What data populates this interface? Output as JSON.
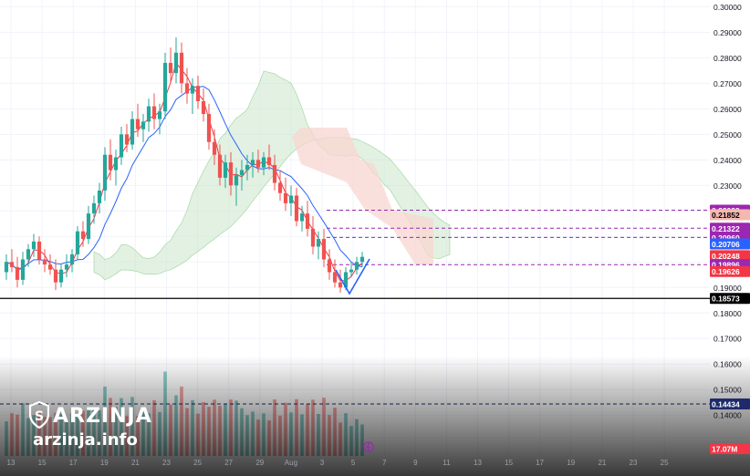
{
  "watermark": {
    "brand": "ARZINJA",
    "url": "arzinja.info"
  },
  "chart_data": {
    "type": "candlestick",
    "title": "",
    "y_axis": {
      "ticks": [
        "0.30000",
        "0.29000",
        "0.28000",
        "0.27000",
        "0.26000",
        "0.25000",
        "0.24000",
        "0.23000",
        "0.22000",
        "0.21000",
        "0.20000",
        "0.19000",
        "0.18000",
        "0.17000",
        "0.16000",
        "0.15000",
        "0.14000"
      ],
      "range": [
        0.1365,
        0.3005
      ]
    },
    "x_axis": {
      "ticks": [
        "13",
        "15",
        "17",
        "19",
        "21",
        "23",
        "25",
        "27",
        "29",
        "Aug",
        "3",
        "5",
        "7",
        "9",
        "11",
        "13",
        "15",
        "17",
        "19",
        "21",
        "23",
        "25"
      ]
    },
    "price_labels": [
      {
        "value": "0.22029",
        "bg": "#9c27b0",
        "fg": "#ffffff"
      },
      {
        "value": "0.21852",
        "bg": "#f4b8b0",
        "fg": "#000000"
      },
      {
        "value": "0.21322",
        "bg": "#9c27b0",
        "fg": "#ffffff"
      },
      {
        "value": "0.20960",
        "bg": "#9c27b0",
        "fg": "#ffffff"
      },
      {
        "value": "0.20706",
        "bg": "#2962ff",
        "fg": "#ffffff"
      },
      {
        "value": "0.20248",
        "bg": "#f23645",
        "fg": "#ffffff"
      },
      {
        "value": "0.19896",
        "bg": "#9c27b0",
        "fg": "#ffffff"
      },
      {
        "value": "0.19626",
        "bg": "#f23645",
        "fg": "#ffffff"
      },
      {
        "value": "0.18573",
        "bg": "#000000",
        "fg": "#ffffff"
      },
      {
        "value": "0.14434",
        "bg": "#1e2a6b",
        "fg": "#ffffff"
      },
      {
        "value": "17.07M",
        "bg": "#f23645",
        "fg": "#ffffff"
      }
    ],
    "horizontal_levels": [
      {
        "value": 0.22029,
        "style": "dashed",
        "color": "#9c27b0"
      },
      {
        "value": 0.21322,
        "style": "dashed",
        "color": "#9c27b0"
      },
      {
        "value": 0.2096,
        "style": "dashed",
        "color": "#9c27b0"
      },
      {
        "value": 0.19896,
        "style": "dashed",
        "color": "#9c27b0"
      },
      {
        "value": 0.18573,
        "style": "solid",
        "color": "#000000"
      },
      {
        "value": 0.14434,
        "style": "dashed",
        "color": "#1e2a6b"
      }
    ],
    "colors": {
      "up": "#26a69a",
      "down": "#ef5350",
      "kijun": "#2962ff",
      "tenkan": "#f23645",
      "cloud_bull": "#cfe8cf",
      "cloud_bear": "#f8d6d0"
    },
    "candles": [
      [
        0.196,
        0.203,
        0.193,
        0.2
      ],
      [
        0.2,
        0.205,
        0.196,
        0.198
      ],
      [
        0.198,
        0.202,
        0.19,
        0.193
      ],
      [
        0.193,
        0.204,
        0.191,
        0.201
      ],
      [
        0.201,
        0.207,
        0.198,
        0.205
      ],
      [
        0.205,
        0.211,
        0.202,
        0.208
      ],
      [
        0.208,
        0.21,
        0.199,
        0.201
      ],
      [
        0.201,
        0.205,
        0.196,
        0.199
      ],
      [
        0.199,
        0.203,
        0.195,
        0.197
      ],
      [
        0.197,
        0.201,
        0.189,
        0.192
      ],
      [
        0.192,
        0.199,
        0.19,
        0.197
      ],
      [
        0.197,
        0.203,
        0.194,
        0.199
      ],
      [
        0.199,
        0.205,
        0.196,
        0.203
      ],
      [
        0.203,
        0.214,
        0.201,
        0.212
      ],
      [
        0.212,
        0.216,
        0.206,
        0.209
      ],
      [
        0.209,
        0.222,
        0.207,
        0.219
      ],
      [
        0.219,
        0.226,
        0.215,
        0.223
      ],
      [
        0.223,
        0.231,
        0.219,
        0.228
      ],
      [
        0.228,
        0.245,
        0.224,
        0.242
      ],
      [
        0.242,
        0.248,
        0.232,
        0.236
      ],
      [
        0.236,
        0.244,
        0.23,
        0.241
      ],
      [
        0.241,
        0.253,
        0.238,
        0.25
      ],
      [
        0.25,
        0.254,
        0.243,
        0.246
      ],
      [
        0.246,
        0.259,
        0.244,
        0.256
      ],
      [
        0.256,
        0.262,
        0.249,
        0.252
      ],
      [
        0.252,
        0.258,
        0.247,
        0.255
      ],
      [
        0.255,
        0.264,
        0.251,
        0.261
      ],
      [
        0.261,
        0.266,
        0.252,
        0.256
      ],
      [
        0.256,
        0.262,
        0.25,
        0.259
      ],
      [
        0.259,
        0.282,
        0.256,
        0.278
      ],
      [
        0.278,
        0.284,
        0.27,
        0.274
      ],
      [
        0.274,
        0.288,
        0.27,
        0.282
      ],
      [
        0.282,
        0.286,
        0.266,
        0.27
      ],
      [
        0.27,
        0.276,
        0.262,
        0.266
      ],
      [
        0.266,
        0.272,
        0.258,
        0.269
      ],
      [
        0.269,
        0.273,
        0.26,
        0.263
      ],
      [
        0.263,
        0.268,
        0.255,
        0.258
      ],
      [
        0.258,
        0.262,
        0.244,
        0.247
      ],
      [
        0.247,
        0.252,
        0.238,
        0.242
      ],
      [
        0.242,
        0.246,
        0.23,
        0.233
      ],
      [
        0.233,
        0.242,
        0.229,
        0.239
      ],
      [
        0.239,
        0.243,
        0.226,
        0.23
      ],
      [
        0.23,
        0.237,
        0.222,
        0.234
      ],
      [
        0.234,
        0.24,
        0.228,
        0.236
      ],
      [
        0.236,
        0.242,
        0.232,
        0.238
      ],
      [
        0.238,
        0.243,
        0.233,
        0.24
      ],
      [
        0.24,
        0.244,
        0.235,
        0.237
      ],
      [
        0.237,
        0.243,
        0.234,
        0.241
      ],
      [
        0.241,
        0.246,
        0.236,
        0.238
      ],
      [
        0.238,
        0.242,
        0.228,
        0.231
      ],
      [
        0.231,
        0.236,
        0.224,
        0.227
      ],
      [
        0.227,
        0.233,
        0.22,
        0.223
      ],
      [
        0.223,
        0.23,
        0.218,
        0.226
      ],
      [
        0.226,
        0.229,
        0.214,
        0.216
      ],
      [
        0.216,
        0.222,
        0.212,
        0.219
      ],
      [
        0.219,
        0.224,
        0.21,
        0.213
      ],
      [
        0.213,
        0.218,
        0.203,
        0.206
      ],
      [
        0.206,
        0.212,
        0.201,
        0.209
      ],
      [
        0.209,
        0.213,
        0.198,
        0.201
      ],
      [
        0.201,
        0.205,
        0.193,
        0.196
      ],
      [
        0.196,
        0.201,
        0.19,
        0.192
      ],
      [
        0.192,
        0.197,
        0.188,
        0.19
      ],
      [
        0.19,
        0.198,
        0.189,
        0.196
      ],
      [
        0.196,
        0.2,
        0.194,
        0.197
      ],
      [
        0.197,
        0.202,
        0.195,
        0.2
      ],
      [
        0.2,
        0.204,
        0.198,
        0.202
      ]
    ]
  }
}
